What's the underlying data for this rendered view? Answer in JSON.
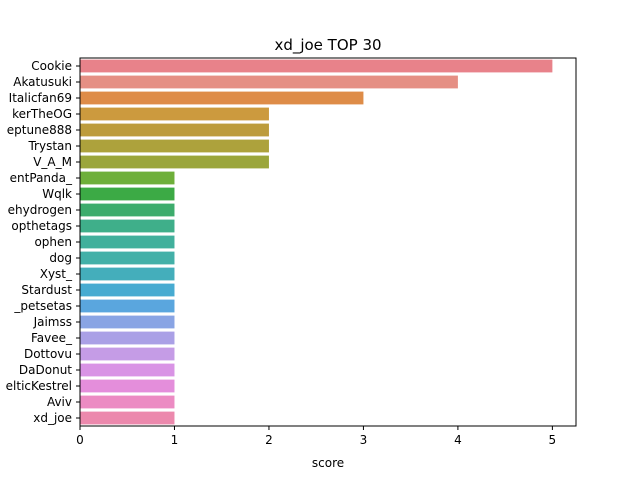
{
  "chart_data": {
    "type": "bar",
    "orientation": "horizontal",
    "title": "xd_joe TOP 30",
    "xlabel": "score",
    "ylabel": "",
    "xlim": [
      0,
      5.25
    ],
    "xticks": [
      0,
      1,
      2,
      3,
      4,
      5
    ],
    "grid": false,
    "legend": "none",
    "categories": [
      "Cookie",
      "Akatusuki",
      "Italicfan69",
      "kerTheOG",
      "eptune888",
      "Trystan",
      "V_A_M",
      "entPanda_",
      "Wqlk",
      "ehydrogen",
      "opthetags",
      "ophen",
      "dog",
      "Xyst_",
      "Stardust",
      "_petsetas",
      "Jaimss",
      "Favee_",
      "Dottovu",
      "DaDonut",
      "elticKestrel",
      "Aviv",
      "xd_joe"
    ],
    "values": [
      5,
      4,
      3,
      2,
      2,
      2,
      2,
      1,
      1,
      1,
      1,
      1,
      1,
      1,
      1,
      1,
      1,
      1,
      1,
      1,
      1,
      1,
      1
    ],
    "colors": [
      "#e8828a",
      "#e58f84",
      "#de8c48",
      "#cc9a3e",
      "#bd9c3c",
      "#ada23c",
      "#9ba63b",
      "#6eaf3a",
      "#3caa45",
      "#3dac6c",
      "#3faf8a",
      "#41b09c",
      "#43b0a8",
      "#44aebb",
      "#47abd1",
      "#5aa6de",
      "#89a4e4",
      "#aaa0e6",
      "#c59ce6",
      "#d994e5",
      "#e48edb",
      "#ec8bc3",
      "#ec89ad"
    ]
  }
}
